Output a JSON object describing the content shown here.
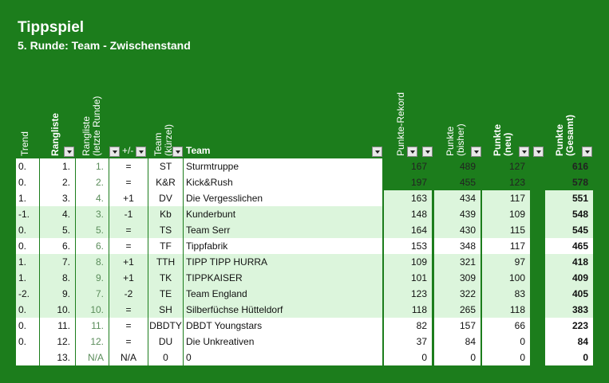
{
  "title": "Tippspiel",
  "subtitle": "5. Runde: Team - Zwischenstand",
  "headers": {
    "trend": "Trend",
    "rangliste": "Rangliste",
    "rangliste_letzte": "Rangliste\n(letzte Runde)",
    "plusminus": "+/-",
    "team_kurz": "Team\n(kürzel)",
    "team": "Team",
    "punkte_rekord": "Punkte-Rekord",
    "punkte_bisher": "Punkte\n(bisher)",
    "punkte_neu": "Punkte\n(neu)",
    "punkte_gesamt": "Punkte\n(Gesamt)"
  },
  "rows": [
    {
      "trend": "0.",
      "rank": "1.",
      "prev": "1.",
      "pm": "=",
      "kurz": "ST",
      "team": "Sturmtruppe",
      "rekord": "167",
      "bisher": "489",
      "neu": "127",
      "gesamt": "616",
      "shade": "dark"
    },
    {
      "trend": "0.",
      "rank": "2.",
      "prev": "2.",
      "pm": "=",
      "kurz": "K&R",
      "team": "Kick&Rush",
      "rekord": "197",
      "bisher": "455",
      "neu": "123",
      "gesamt": "578",
      "shade": "dark"
    },
    {
      "trend": "1.",
      "rank": "3.",
      "prev": "4.",
      "pm": "+1",
      "kurz": "DV",
      "team": "Die Vergesslichen",
      "rekord": "163",
      "bisher": "434",
      "neu": "117",
      "gesamt": "551",
      "shade": "dark"
    },
    {
      "trend": "-1.",
      "rank": "4.",
      "prev": "3.",
      "pm": "-1",
      "kurz": "Kb",
      "team": "Kunderbunt",
      "rekord": "148",
      "bisher": "439",
      "neu": "109",
      "gesamt": "548",
      "shade": "light"
    },
    {
      "trend": "0.",
      "rank": "5.",
      "prev": "5.",
      "pm": "=",
      "kurz": "TS",
      "team": "Team Serr",
      "rekord": "164",
      "bisher": "430",
      "neu": "115",
      "gesamt": "545",
      "shade": "light"
    },
    {
      "trend": "0.",
      "rank": "6.",
      "prev": "6.",
      "pm": "=",
      "kurz": "TF",
      "team": "Tippfabrik",
      "rekord": "153",
      "bisher": "348",
      "neu": "117",
      "gesamt": "465",
      "shade": "white"
    },
    {
      "trend": "1.",
      "rank": "7.",
      "prev": "8.",
      "pm": "+1",
      "kurz": "TTH",
      "team": "TIPP TIPP HURRA",
      "rekord": "109",
      "bisher": "321",
      "neu": "97",
      "gesamt": "418",
      "shade": "light"
    },
    {
      "trend": "1.",
      "rank": "8.",
      "prev": "9.",
      "pm": "+1",
      "kurz": "TK",
      "team": "TIPPKAISER",
      "rekord": "101",
      "bisher": "309",
      "neu": "100",
      "gesamt": "409",
      "shade": "light"
    },
    {
      "trend": "-2.",
      "rank": "9.",
      "prev": "7.",
      "pm": "-2",
      "kurz": "TE",
      "team": "Team England",
      "rekord": "123",
      "bisher": "322",
      "neu": "83",
      "gesamt": "405",
      "shade": "light"
    },
    {
      "trend": "0.",
      "rank": "10.",
      "prev": "10.",
      "pm": "=",
      "kurz": "SH",
      "team": "Silberfüchse Hütteldorf",
      "rekord": "118",
      "bisher": "265",
      "neu": "118",
      "gesamt": "383",
      "shade": "light"
    },
    {
      "trend": "0.",
      "rank": "11.",
      "prev": "11.",
      "pm": "=",
      "kurz": "DBDTY",
      "team": "DBDT Youngstars",
      "rekord": "82",
      "bisher": "157",
      "neu": "66",
      "gesamt": "223",
      "shade": "white"
    },
    {
      "trend": "0.",
      "rank": "12.",
      "prev": "12.",
      "pm": "=",
      "kurz": "DU",
      "team": "Die Unkreativen",
      "rekord": "37",
      "bisher": "84",
      "neu": "0",
      "gesamt": "84",
      "shade": "white"
    },
    {
      "trend": "",
      "rank": "13.",
      "prev": "N/A",
      "pm": "N/A",
      "kurz": "0",
      "team": "0",
      "rekord": "0",
      "bisher": "0",
      "neu": "0",
      "gesamt": "0",
      "shade": "white"
    }
  ],
  "colors": {
    "background": "#1c7d1c",
    "light_row": "#dcf5dc",
    "white": "#ffffff"
  }
}
